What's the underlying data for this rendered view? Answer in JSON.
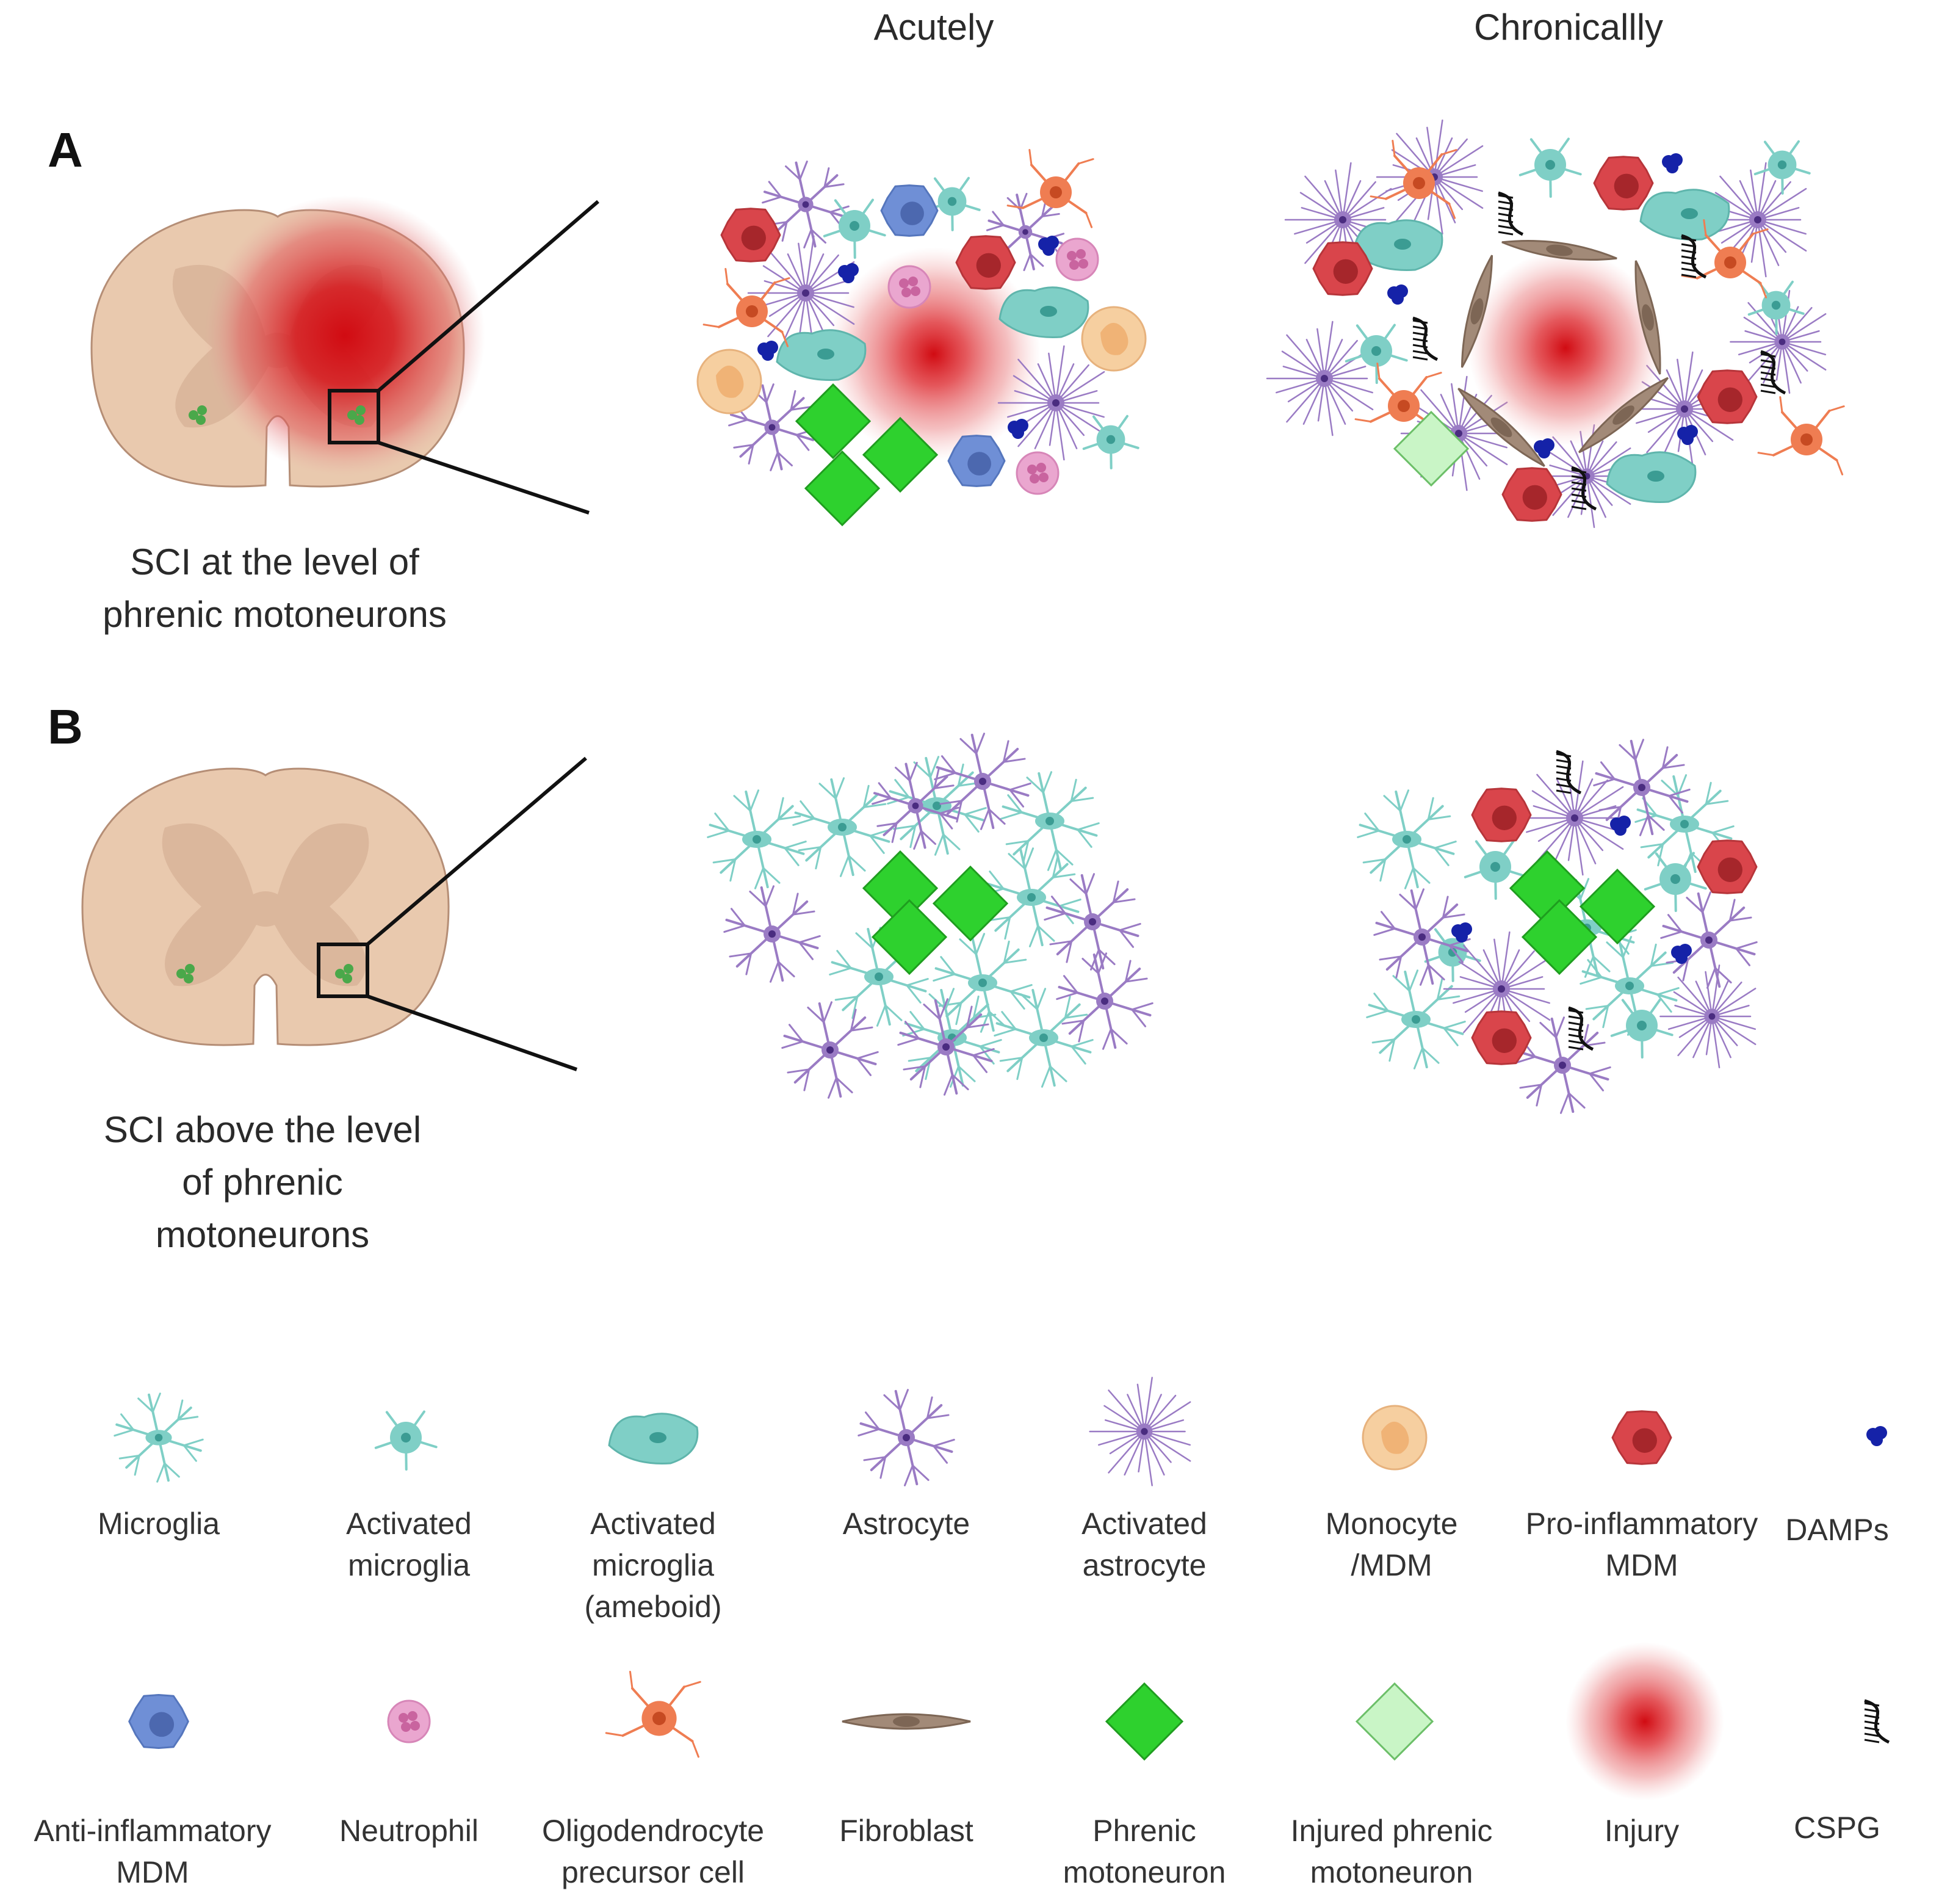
{
  "columns": {
    "acute": "Acutely",
    "chronic": "Chronicallly"
  },
  "panels": [
    {
      "letter": "A",
      "caption": "SCI at the level of\nphrenic motoneurons"
    },
    {
      "letter": "B",
      "caption": "SCI above the level\nof phrenic\nmotoneurons"
    }
  ],
  "legend": [
    {
      "icon": "microglia-icon",
      "label": "Microglia"
    },
    {
      "icon": "activated-microglia-icon",
      "label": "Activated\nmicroglia"
    },
    {
      "icon": "ameboid-microglia-icon",
      "label": "Activated\nmicroglia\n(ameboid)"
    },
    {
      "icon": "astrocyte-icon",
      "label": "Astrocyte"
    },
    {
      "icon": "activated-astrocyte-icon",
      "label": "Activated\nastrocyte"
    },
    {
      "icon": "monocyte-icon",
      "label": "Monocyte\n/MDM"
    },
    {
      "icon": "pro-inflammatory-mdm-icon",
      "label": "Pro-inflammatory\nMDM"
    },
    {
      "icon": "damps-icon",
      "label": "DAMPs"
    },
    {
      "icon": "anti-inflammatory-mdm-icon",
      "label": "Anti-inflammatory\nMDM"
    },
    {
      "icon": "neutrophil-icon",
      "label": "Neutrophil"
    },
    {
      "icon": "opc-icon",
      "label": "Oligodendrocyte\nprecursor cell"
    },
    {
      "icon": "fibroblast-icon",
      "label": "Fibroblast"
    },
    {
      "icon": "phrenic-motoneuron-icon",
      "label": "Phrenic\nmotoneuron"
    },
    {
      "icon": "injured-phrenic-motoneuron-icon",
      "label": "Injured phrenic\nmotoneuron"
    },
    {
      "icon": "injury-icon",
      "label": "Injury"
    },
    {
      "icon": "cspg-icon",
      "label": "CSPG"
    }
  ],
  "colors": {
    "cord": "#e9c9ae",
    "grey_matter": "#d9b59a",
    "cord_stroke": "#b58e76",
    "injury": "#d10b12",
    "microglia": "#7fcfc6",
    "astrocyte": "#9a7bc4",
    "monocyte": "#f6cfa0",
    "pro_mdm": "#d9454b",
    "damps": "#1522a8",
    "anti_mdm": "#6f8fd6",
    "neutrophil": "#eaa6cf",
    "opc": "#ef7d52",
    "fibroblast": "#a28a78",
    "motoneuron": "#2ed12e",
    "injured_motoneuron": "#c9f5c6"
  }
}
